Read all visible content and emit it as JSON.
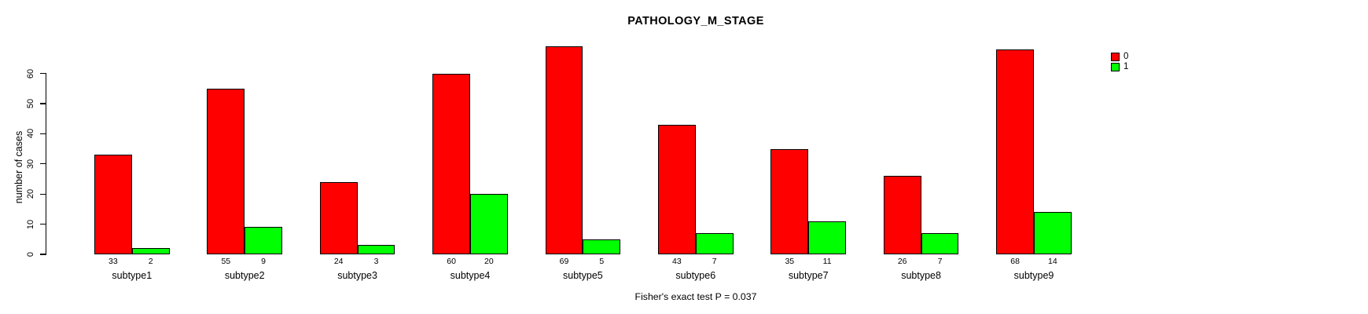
{
  "title": "PATHOLOGY_M_STAGE",
  "annotation": "Fisher's exact test P = 0.037",
  "ylabel": "number of cases",
  "colors": {
    "series0": "#ff0000",
    "series1": "#00ff00",
    "axis": "#000000",
    "background": "#ffffff"
  },
  "legend": {
    "position": "top-right",
    "items": [
      {
        "label": "0",
        "color": "#ff0000"
      },
      {
        "label": "1",
        "color": "#00ff00"
      }
    ]
  },
  "chart_data": {
    "type": "bar",
    "title": "PATHOLOGY_M_STAGE",
    "ylabel": "number of cases",
    "xlabel": "",
    "categories": [
      "subtype1",
      "subtype2",
      "subtype3",
      "subtype4",
      "subtype5",
      "subtype6",
      "subtype7",
      "subtype8",
      "subtype9"
    ],
    "series": [
      {
        "name": "0",
        "color": "#ff0000",
        "values": [
          33,
          55,
          24,
          60,
          69,
          43,
          35,
          26,
          68
        ]
      },
      {
        "name": "1",
        "color": "#00ff00",
        "values": [
          2,
          9,
          3,
          20,
          5,
          7,
          11,
          7,
          14
        ]
      }
    ],
    "bar_value_labels": [
      [
        "33",
        "2"
      ],
      [
        "55",
        "9"
      ],
      [
        "24",
        "3"
      ],
      [
        "60",
        "20"
      ],
      [
        "69",
        "5"
      ],
      [
        "43",
        "7"
      ],
      [
        "35",
        "11"
      ],
      [
        "26",
        "7"
      ],
      [
        "68",
        "14"
      ]
    ],
    "yticks": [
      0,
      10,
      20,
      30,
      40,
      50,
      60
    ],
    "ylim": [
      0,
      69
    ],
    "grid": false,
    "legend_position": "top-right",
    "annotation": "Fisher's exact test P = 0.037"
  }
}
